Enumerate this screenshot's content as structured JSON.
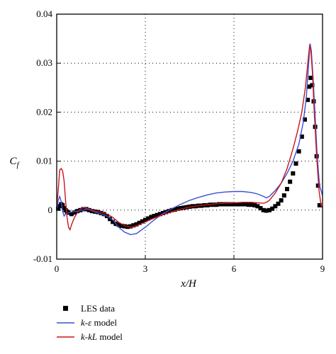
{
  "chart_data": {
    "type": "line",
    "title": "",
    "xlabel": "x/H",
    "ylabel": "C_f",
    "xlim": [
      0,
      9
    ],
    "ylim": [
      -0.01,
      0.04
    ],
    "x_ticks": [
      "0",
      "3",
      "6",
      "9"
    ],
    "y_ticks": [
      "-0.01",
      "0",
      "0.01",
      "0.02",
      "0.03",
      "0.04"
    ],
    "grid": "dotted",
    "legend_position": "bottom-left-outside",
    "colors": {
      "les": "#000000",
      "k_eps": "#3b4fd6",
      "k_kl": "#c8161d"
    },
    "series": [
      {
        "name": "LES data",
        "kind": "scatter",
        "marker": "square",
        "points": [
          [
            0.05,
            0.0003
          ],
          [
            0.1,
            0.0008
          ],
          [
            0.15,
            0.0012
          ],
          [
            0.2,
            0.001
          ],
          [
            0.25,
            0.0004
          ],
          [
            0.3,
            0.0
          ],
          [
            0.35,
            -0.0003
          ],
          [
            0.4,
            -0.0005
          ],
          [
            0.5,
            -0.0008
          ],
          [
            0.6,
            -0.0005
          ],
          [
            0.7,
            -0.0002
          ],
          [
            0.8,
            0.0
          ],
          [
            0.9,
            0.0002
          ],
          [
            1.0,
            0.0002
          ],
          [
            1.1,
            0.0
          ],
          [
            1.2,
            -0.0002
          ],
          [
            1.3,
            -0.0003
          ],
          [
            1.4,
            -0.0004
          ],
          [
            1.5,
            -0.0006
          ],
          [
            1.6,
            -0.0008
          ],
          [
            1.7,
            -0.0012
          ],
          [
            1.8,
            -0.0018
          ],
          [
            1.9,
            -0.0024
          ],
          [
            2.0,
            -0.0028
          ],
          [
            2.1,
            -0.003
          ],
          [
            2.2,
            -0.0032
          ],
          [
            2.3,
            -0.0033
          ],
          [
            2.4,
            -0.0034
          ],
          [
            2.5,
            -0.0033
          ],
          [
            2.6,
            -0.0031
          ],
          [
            2.7,
            -0.0029
          ],
          [
            2.8,
            -0.0026
          ],
          [
            2.9,
            -0.0023
          ],
          [
            3.0,
            -0.002
          ],
          [
            3.1,
            -0.0017
          ],
          [
            3.2,
            -0.0014
          ],
          [
            3.3,
            -0.0012
          ],
          [
            3.4,
            -0.001
          ],
          [
            3.5,
            -0.0008
          ],
          [
            3.6,
            -0.0006
          ],
          [
            3.7,
            -0.0004
          ],
          [
            3.8,
            -0.0002
          ],
          [
            3.9,
            0.0
          ],
          [
            4.0,
            0.0001
          ],
          [
            4.1,
            0.0003
          ],
          [
            4.2,
            0.0004
          ],
          [
            4.3,
            0.0005
          ],
          [
            4.4,
            0.0006
          ],
          [
            4.5,
            0.0007
          ],
          [
            4.6,
            0.0008
          ],
          [
            4.7,
            0.0008
          ],
          [
            4.8,
            0.0009
          ],
          [
            4.9,
            0.0009
          ],
          [
            5.0,
            0.001
          ],
          [
            5.1,
            0.001
          ],
          [
            5.2,
            0.0011
          ],
          [
            5.3,
            0.0011
          ],
          [
            5.4,
            0.0011
          ],
          [
            5.5,
            0.0012
          ],
          [
            5.6,
            0.0012
          ],
          [
            5.7,
            0.0012
          ],
          [
            5.8,
            0.0012
          ],
          [
            5.9,
            0.0012
          ],
          [
            6.0,
            0.0012
          ],
          [
            6.1,
            0.0012
          ],
          [
            6.2,
            0.0012
          ],
          [
            6.3,
            0.0012
          ],
          [
            6.4,
            0.0012
          ],
          [
            6.5,
            0.0011
          ],
          [
            6.6,
            0.0011
          ],
          [
            6.7,
            0.001
          ],
          [
            6.8,
            0.0008
          ],
          [
            6.9,
            0.0004
          ],
          [
            7.0,
            0.0
          ],
          [
            7.1,
            -0.0001
          ],
          [
            7.2,
            0.0
          ],
          [
            7.3,
            0.0003
          ],
          [
            7.4,
            0.0008
          ],
          [
            7.5,
            0.0013
          ],
          [
            7.6,
            0.002
          ],
          [
            7.7,
            0.003
          ],
          [
            7.8,
            0.0043
          ],
          [
            7.9,
            0.0058
          ],
          [
            8.0,
            0.0075
          ],
          [
            8.1,
            0.0095
          ],
          [
            8.2,
            0.012
          ],
          [
            8.3,
            0.015
          ],
          [
            8.4,
            0.0185
          ],
          [
            8.5,
            0.0225
          ],
          [
            8.55,
            0.0252
          ],
          [
            8.6,
            0.027
          ],
          [
            8.65,
            0.0255
          ],
          [
            8.7,
            0.0222
          ],
          [
            8.75,
            0.017
          ],
          [
            8.8,
            0.011
          ],
          [
            8.85,
            0.005
          ],
          [
            8.9,
            0.001
          ]
        ]
      },
      {
        "name": "k-ε model",
        "kind": "line",
        "points": [
          [
            0,
            0.0
          ],
          [
            0.05,
            0.002
          ],
          [
            0.1,
            0.0028
          ],
          [
            0.15,
            0.0018
          ],
          [
            0.2,
            -0.0002
          ],
          [
            0.25,
            -0.0012
          ],
          [
            0.3,
            -0.0008
          ],
          [
            0.4,
            -0.0005
          ],
          [
            0.5,
            -0.0004
          ],
          [
            0.7,
            -0.0002
          ],
          [
            0.9,
            0.0
          ],
          [
            1.0,
            0.0002
          ],
          [
            1.1,
            0.0001
          ],
          [
            1.3,
            -0.0004
          ],
          [
            1.5,
            -0.0008
          ],
          [
            1.7,
            -0.0012
          ],
          [
            1.9,
            -0.002
          ],
          [
            2.1,
            -0.0035
          ],
          [
            2.3,
            -0.0045
          ],
          [
            2.5,
            -0.005
          ],
          [
            2.7,
            -0.0048
          ],
          [
            3.0,
            -0.0035
          ],
          [
            3.3,
            -0.002
          ],
          [
            3.6,
            -0.0007
          ],
          [
            3.9,
            0.0003
          ],
          [
            4.2,
            0.0012
          ],
          [
            4.5,
            0.002
          ],
          [
            4.8,
            0.0026
          ],
          [
            5.1,
            0.0031
          ],
          [
            5.4,
            0.0035
          ],
          [
            5.7,
            0.0037
          ],
          [
            6.0,
            0.0038
          ],
          [
            6.3,
            0.0038
          ],
          [
            6.6,
            0.0036
          ],
          [
            6.8,
            0.0033
          ],
          [
            7.0,
            0.0028
          ],
          [
            7.1,
            0.0025
          ],
          [
            7.2,
            0.0028
          ],
          [
            7.4,
            0.004
          ],
          [
            7.6,
            0.0055
          ],
          [
            7.8,
            0.0075
          ],
          [
            8.0,
            0.01
          ],
          [
            8.2,
            0.0135
          ],
          [
            8.35,
            0.018
          ],
          [
            8.45,
            0.023
          ],
          [
            8.52,
            0.029
          ],
          [
            8.58,
            0.034
          ],
          [
            8.62,
            0.0325
          ],
          [
            8.68,
            0.027
          ],
          [
            8.75,
            0.019
          ],
          [
            8.82,
            0.011
          ],
          [
            8.9,
            0.005
          ],
          [
            9.0,
            0.003
          ]
        ]
      },
      {
        "name": "k-kL model",
        "kind": "line",
        "points": [
          [
            0,
            0.001
          ],
          [
            0.05,
            0.004
          ],
          [
            0.1,
            0.0082
          ],
          [
            0.15,
            0.0085
          ],
          [
            0.2,
            0.008
          ],
          [
            0.25,
            0.006
          ],
          [
            0.3,
            0.002
          ],
          [
            0.35,
            -0.0015
          ],
          [
            0.4,
            -0.0035
          ],
          [
            0.45,
            -0.004
          ],
          [
            0.5,
            -0.003
          ],
          [
            0.6,
            -0.0015
          ],
          [
            0.7,
            -0.0005
          ],
          [
            0.8,
            0.0002
          ],
          [
            0.9,
            0.0005
          ],
          [
            1.0,
            0.0004
          ],
          [
            1.1,
            0.0002
          ],
          [
            1.3,
            -0.0002
          ],
          [
            1.5,
            -0.0004
          ],
          [
            1.7,
            -0.0008
          ],
          [
            1.9,
            -0.0015
          ],
          [
            2.1,
            -0.0025
          ],
          [
            2.3,
            -0.0032
          ],
          [
            2.5,
            -0.0035
          ],
          [
            2.7,
            -0.0032
          ],
          [
            3.0,
            -0.0024
          ],
          [
            3.3,
            -0.0016
          ],
          [
            3.6,
            -0.0009
          ],
          [
            3.9,
            -0.0003
          ],
          [
            4.2,
            0.0002
          ],
          [
            4.5,
            0.0006
          ],
          [
            4.8,
            0.0009
          ],
          [
            5.1,
            0.0011
          ],
          [
            5.4,
            0.0013
          ],
          [
            5.7,
            0.0014
          ],
          [
            6.0,
            0.0015
          ],
          [
            6.3,
            0.0016
          ],
          [
            6.6,
            0.0016
          ],
          [
            6.8,
            0.0015
          ],
          [
            7.0,
            0.0014
          ],
          [
            7.1,
            0.0016
          ],
          [
            7.2,
            0.002
          ],
          [
            7.4,
            0.0035
          ],
          [
            7.6,
            0.0055
          ],
          [
            7.8,
            0.0085
          ],
          [
            8.0,
            0.0125
          ],
          [
            8.15,
            0.016
          ],
          [
            8.3,
            0.02
          ],
          [
            8.42,
            0.025
          ],
          [
            8.5,
            0.03
          ],
          [
            8.56,
            0.0335
          ],
          [
            8.6,
            0.033
          ],
          [
            8.66,
            0.028
          ],
          [
            8.72,
            0.02
          ],
          [
            8.8,
            0.011
          ],
          [
            8.88,
            0.004
          ],
          [
            8.95,
            0.001
          ],
          [
            9.0,
            0.0005
          ]
        ]
      }
    ]
  },
  "legend": {
    "items": [
      {
        "key": "les",
        "label": "LES data"
      },
      {
        "key": "k_eps",
        "label_italic": "k-ε",
        "label_rest": " model"
      },
      {
        "key": "k_kl",
        "label_italic": "k-kL",
        "label_rest": " model"
      }
    ]
  }
}
